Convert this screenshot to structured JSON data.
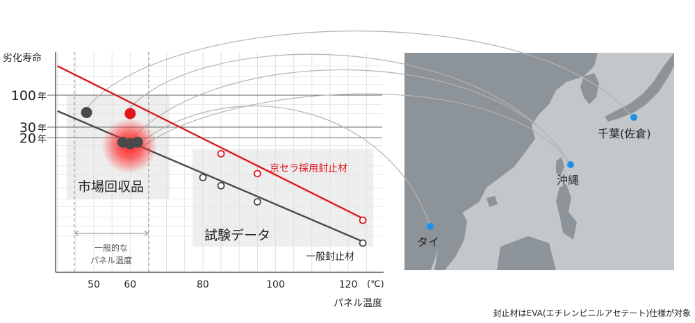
{
  "chart_data": {
    "type": "line",
    "ylabel": "劣化寿命",
    "xlabel": "パネル温度",
    "x_unit": "(℃)",
    "x_ticks": [
      50,
      60,
      80,
      100,
      120
    ],
    "xlim": [
      40,
      125
    ],
    "y_ticks": [
      {
        "label": "100",
        "unit": "年",
        "value": 100
      },
      {
        "label": "30",
        "unit": "年",
        "value": 30
      },
      {
        "label": "20",
        "unit": "年",
        "value": 20
      }
    ],
    "y_scale": "log",
    "grid": true,
    "series": [
      {
        "name": "京セラ採用封止材",
        "color": "#e0161b",
        "line": [
          [
            40,
            300
          ],
          [
            125,
            0.9
          ]
        ],
        "test_points": [
          [
            85,
            11
          ],
          [
            95,
            5.2
          ],
          [
            124,
            0.9
          ]
        ],
        "market_points": [
          [
            60,
            50
          ]
        ]
      },
      {
        "name": "一般封止材",
        "color": "#4a4a4a",
        "line": [
          [
            40,
            55
          ],
          [
            125,
            0.38
          ]
        ],
        "test_points": [
          [
            80,
            4.5
          ],
          [
            85,
            3.3
          ],
          [
            95,
            1.8
          ],
          [
            124,
            0.38
          ]
        ],
        "market_points": [
          [
            48,
            52
          ],
          [
            58,
            17
          ],
          [
            60,
            16
          ],
          [
            62,
            17
          ]
        ]
      }
    ],
    "annotations": {
      "market": "市場回収品",
      "test": "試験データ",
      "typical_temp": "一般的な\nパネル温度",
      "typical_temp_range": [
        44,
        66
      ],
      "footnote": "封止材はEVA(エチレンビニルアセテート)仕様が対象"
    },
    "map_locations": [
      "千葉(佐倉)",
      "沖縄",
      "タイ"
    ],
    "colors": {
      "accent_red": "#e0161b",
      "dark": "#4a4a4a",
      "map_land": "#8d9499",
      "map_sea": "#ffffff",
      "map_bg": "#c3c7ca",
      "pin": "#1e90e8"
    }
  }
}
